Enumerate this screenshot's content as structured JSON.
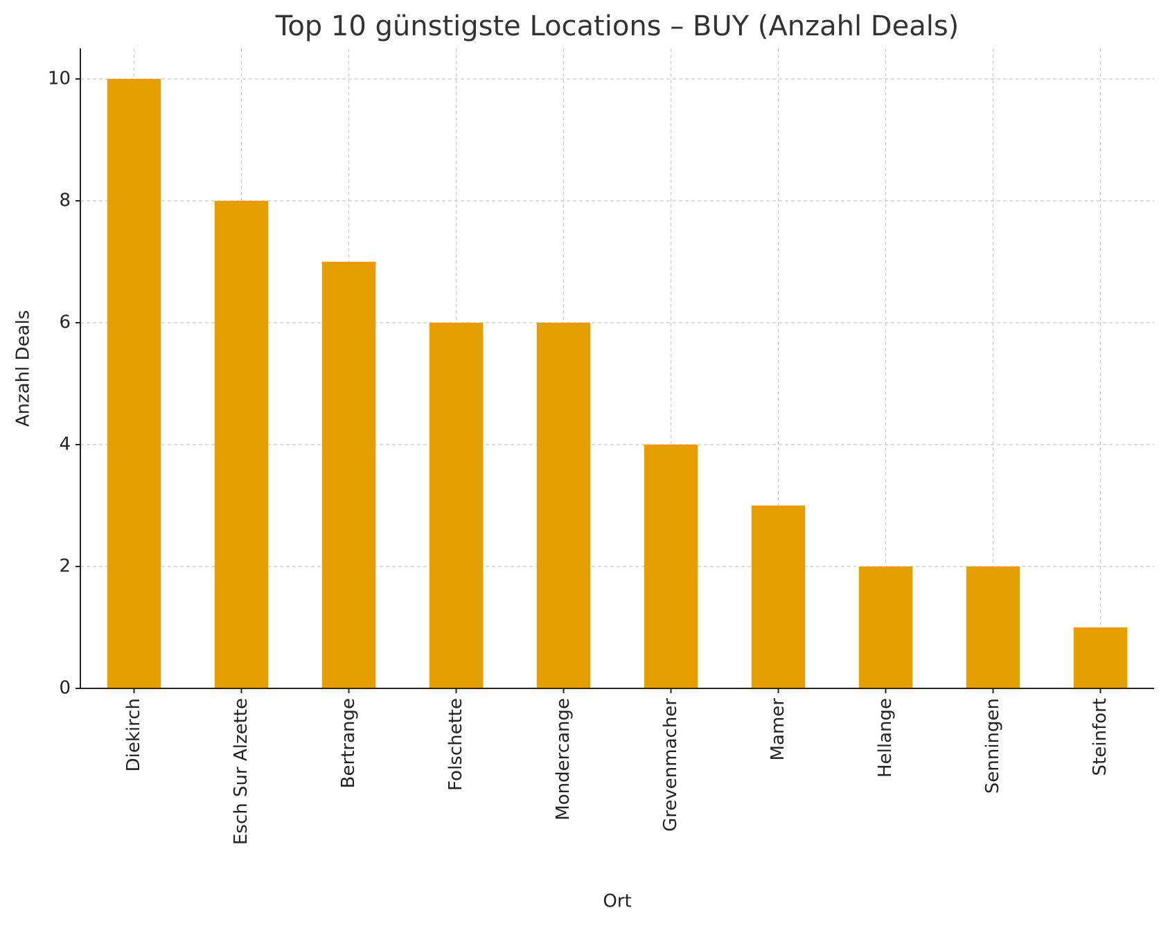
{
  "chart_data": {
    "type": "bar",
    "title": "Top 10 günstigste Locations – BUY (Anzahl Deals)",
    "x_label": "Ort",
    "y_label": "Anzahl Deals",
    "categories": [
      "Diekirch",
      "Esch Sur Alzette",
      "Bertrange",
      "Folschette",
      "Mondercange",
      "Grevenmacher",
      "Mamer",
      "Hellange",
      "Senningen",
      "Steinfort"
    ],
    "values": [
      10,
      8,
      7,
      6,
      6,
      4,
      3,
      2,
      2,
      1
    ],
    "color": "#e69f00",
    "ylim": [
      0,
      10.5
    ],
    "yticks": [
      0,
      2,
      4,
      6,
      8,
      10
    ],
    "grid": true
  }
}
